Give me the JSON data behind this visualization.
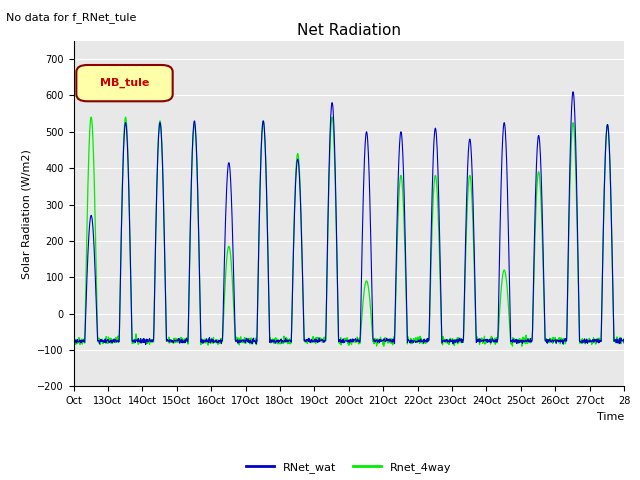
{
  "title": "Net Radiation",
  "xlabel": "Time",
  "ylabel": "Solar Radiation (W/m2)",
  "ylim": [
    -200,
    750
  ],
  "yticks": [
    -200,
    -100,
    0,
    100,
    200,
    300,
    400,
    500,
    600,
    700
  ],
  "annotation_text": "No data for f_RNet_tule",
  "legend_label": "MB_tule",
  "line1_label": "RNet_wat",
  "line2_label": "Rnet_4way",
  "line1_color": "#0000cc",
  "line2_color": "#00ee00",
  "plot_bg_color": "#e8e8e8",
  "fig_bg_color": "#ffffff",
  "xticklabels": [
    "Oct",
    "13Oct",
    "14Oct",
    "15Oct",
    "16Oct",
    "17Oct",
    "18Oct",
    "19Oct",
    "20Oct",
    "21Oct",
    "22Oct",
    "23Oct",
    "24Oct",
    "25Oct",
    "26Oct",
    "27Oct",
    "28"
  ],
  "n_days": 16,
  "pts_per_day": 96,
  "blue_peaks": [
    270,
    525,
    525,
    530,
    415,
    530,
    425,
    580,
    500,
    500,
    510,
    480,
    525,
    490,
    610,
    520
  ],
  "green_peaks": [
    540,
    540,
    530,
    520,
    185,
    530,
    440,
    540,
    90,
    380,
    380,
    380,
    120,
    390,
    525,
    520
  ],
  "night_val": -75,
  "title_fontsize": 11,
  "axis_label_fontsize": 8,
  "tick_fontsize": 7,
  "legend_fontsize": 8
}
